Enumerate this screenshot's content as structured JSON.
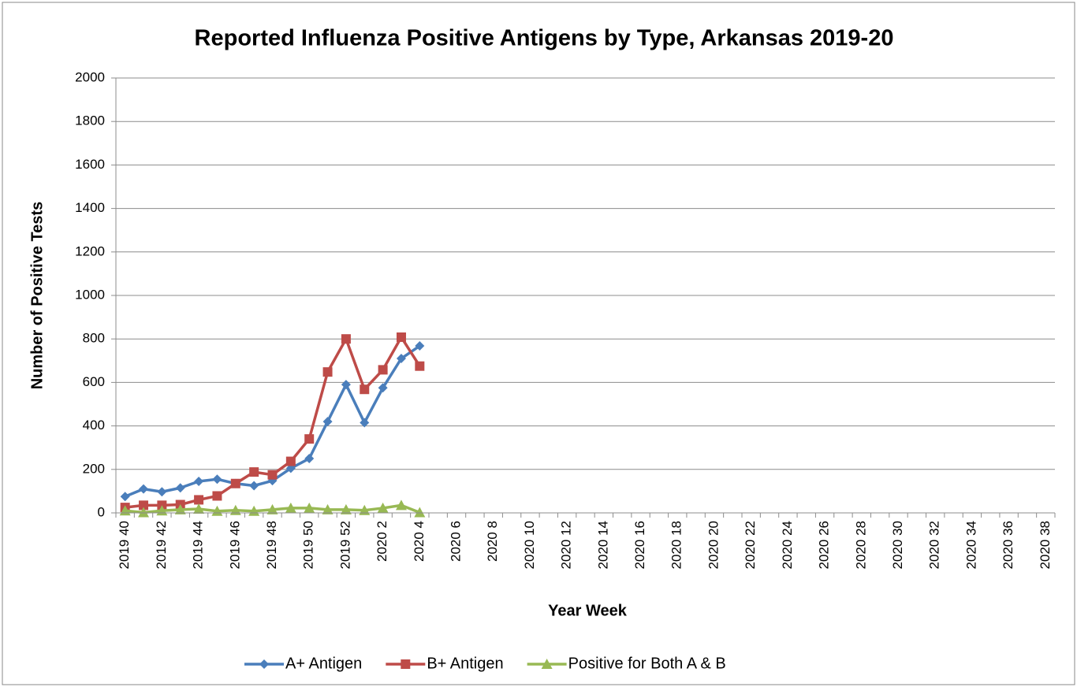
{
  "chart_data": {
    "type": "line",
    "title": "Reported Influenza Positive Antigens by Type, Arkansas 2019-20",
    "x_label": "Year Week",
    "y_label": "Number of Positive Tests",
    "categories": [
      "2019 40",
      null,
      "2019 42",
      null,
      "2019 44",
      null,
      "2019 46",
      null,
      "2019 48",
      null,
      "2019 50",
      null,
      "2019 52",
      null,
      "2020 2",
      null,
      "2020 4",
      null,
      "2020 6",
      null,
      "2020 8",
      null,
      "2020 10",
      null,
      "2020 12",
      null,
      "2020 14",
      null,
      "2020 16",
      null,
      "2020 18",
      null,
      "2020 20",
      null,
      "2020 22",
      null,
      "2020 24",
      null,
      "2020 26",
      null,
      "2020 28",
      null,
      "2020 30",
      null,
      "2020 32",
      null,
      "2020 34",
      null,
      "2020 36",
      null,
      "2020 38"
    ],
    "series": [
      {
        "name": "A+ Antigen",
        "color": "#4a7ebb",
        "marker": "diamond",
        "values": [
          75,
          110,
          97,
          115,
          145,
          155,
          135,
          125,
          148,
          205,
          250,
          420,
          590,
          415,
          575,
          710,
          768,
          null,
          null,
          null,
          null,
          null,
          null,
          null,
          null,
          null,
          null,
          null,
          null,
          null,
          null,
          null,
          null,
          null,
          null,
          null,
          null,
          null,
          null,
          null,
          null,
          null,
          null,
          null,
          null,
          null,
          null,
          null,
          null,
          null,
          null
        ]
      },
      {
        "name": "B+ Antigen",
        "color": "#be4b48",
        "marker": "square",
        "values": [
          25,
          35,
          35,
          38,
          60,
          78,
          135,
          188,
          175,
          237,
          340,
          648,
          800,
          568,
          658,
          808,
          675,
          null,
          null,
          null,
          null,
          null,
          null,
          null,
          null,
          null,
          null,
          null,
          null,
          null,
          null,
          null,
          null,
          null,
          null,
          null,
          null,
          null,
          null,
          null,
          null,
          null,
          null,
          null,
          null,
          null,
          null,
          null,
          null,
          null,
          null
        ]
      },
      {
        "name": "Positive for Both A & B",
        "color": "#98b954",
        "marker": "triangle",
        "values": [
          10,
          2,
          10,
          15,
          18,
          8,
          12,
          8,
          15,
          22,
          22,
          15,
          15,
          12,
          22,
          35,
          2,
          null,
          null,
          null,
          null,
          null,
          null,
          null,
          null,
          null,
          null,
          null,
          null,
          null,
          null,
          null,
          null,
          null,
          null,
          null,
          null,
          null,
          null,
          null,
          null,
          null,
          null,
          null,
          null,
          null,
          null,
          null,
          null,
          null,
          null
        ]
      }
    ],
    "ylim": [
      0,
      2000
    ],
    "yticks": [
      0,
      200,
      400,
      600,
      800,
      1000,
      1200,
      1400,
      1600,
      1800,
      2000
    ],
    "grid": true,
    "legend": "bottom"
  }
}
